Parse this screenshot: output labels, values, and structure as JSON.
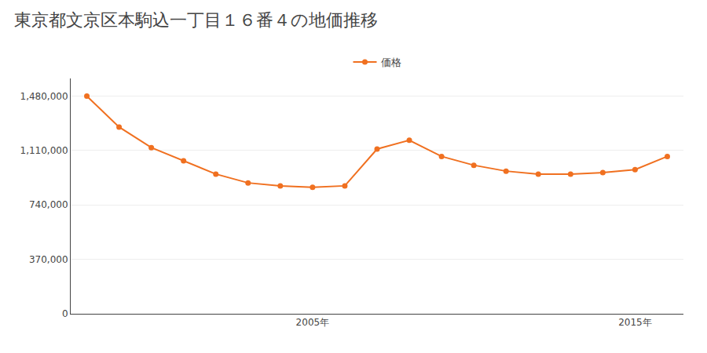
{
  "chart_data": {
    "type": "line",
    "title": "東京都文京区本駒込一丁目１６番４の地価推移",
    "x": [
      1998,
      1999,
      2000,
      2001,
      2002,
      2003,
      2004,
      2005,
      2006,
      2007,
      2008,
      2009,
      2010,
      2011,
      2012,
      2013,
      2014,
      2015,
      2016
    ],
    "series": [
      {
        "name": "価格",
        "color": "#f07020",
        "marker": "circle",
        "line_style": "solid",
        "values": [
          1480000,
          1270000,
          1130000,
          1040000,
          950000,
          890000,
          870000,
          860000,
          870000,
          1120000,
          1180000,
          1070000,
          1010000,
          970000,
          950000,
          950000,
          960000,
          980000,
          1070000
        ]
      }
    ],
    "xlim": [
      1997.5,
      2016.5
    ],
    "xticks": [
      {
        "value": 2005,
        "label": "2005年"
      },
      {
        "value": 2015,
        "label": "2015年"
      }
    ],
    "ylim": [
      0,
      1600000
    ],
    "yticks": [
      0,
      {
        "value": 370000,
        "label": "370,000"
      },
      {
        "value": 740000,
        "label": "740,000"
      },
      {
        "value": 1110000,
        "label": "1,110,000"
      },
      {
        "value": 1480000,
        "label": "1,480,000"
      }
    ],
    "grid": "y",
    "legend": "top"
  }
}
